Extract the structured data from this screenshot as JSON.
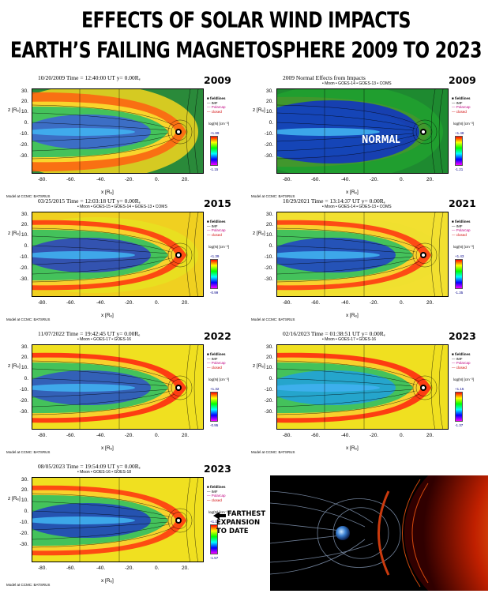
{
  "title_line1": "EFFECTS OF SOLAR WIND IMPACTS",
  "title_line2": "EARTH’S FAILING MAGNETOSPHERE 2009 TO 2023",
  "common": {
    "ylabel": "z [Rₑ]",
    "xlabel": "x [Rₑ]",
    "y_ticks": [
      "30.",
      "20.",
      "10.",
      "0.",
      "-10.",
      "-20.",
      "-30."
    ],
    "x_ticks": [
      "-80.",
      "-60.",
      "-40.",
      "-20.",
      "0.",
      "20."
    ],
    "legend": [
      "■ fieldlines",
      "— IMF",
      "— Polarcap",
      "— closed"
    ],
    "cbar_label": "log(N) [cm⁻³]",
    "model_credit": "Model at CCMC: BATSRUS"
  },
  "panels": [
    {
      "header": "10/20/2009 Time = 12:40:00 UT y= 0.00Rₑ",
      "sub": "",
      "year": "2009",
      "cmax": "+1.89",
      "cmin": "-1.15",
      "style": "a"
    },
    {
      "header": "2009 Normal Effects from Impacts",
      "sub": "• Moon   • GOES-14   • GOES-13   • COMS",
      "year": "2009",
      "cmax": "+1.48",
      "cmin": "-1.21",
      "style": "n",
      "note": "NORMAL"
    },
    {
      "header": "03/25/2015 Time = 12:03:18 UT y= 0.00Rₑ",
      "sub": "• Moon   • GOES-15   • GOES-14   • GOES-13   • COMS",
      "year": "2015",
      "cmax": "+1.39",
      "cmin": "-0.99",
      "style": "b"
    },
    {
      "header": "10/29/2021 Time = 13:14:37 UT y= 0.00Rₑ",
      "sub": "• Moon   • GOES-14   • GOES-13   • COMS",
      "year": "2021",
      "cmax": "+1.43",
      "cmin": "-1.35",
      "style": "c"
    },
    {
      "header": "11/07/2022 Time = 19:42:45 UT y= 0.00Rₑ",
      "sub": "• Moon   • GOES-17   • GOES-16",
      "year": "2022",
      "cmax": "+1.32",
      "cmin": "-0.95",
      "style": "d"
    },
    {
      "header": "02/16/2023 Time = 01:38:51 UT y= 0.00Rₑ",
      "sub": "• Moon   • GOES-17   • GOES-16",
      "year": "2023",
      "cmax": "+1.15",
      "cmin": "-1.37",
      "style": "e"
    },
    {
      "header": "08/05/2023 Time = 19:54:09 UT y= 0.00Rₑ",
      "sub": "• Moon   • GOES-16   • GOES-18",
      "year": "2023",
      "cmax": "+1.14",
      "cmin": "-1.57",
      "style": "f"
    }
  ],
  "annotation": [
    "FARTHEST",
    "EXPANSION",
    "TO DATE"
  ]
}
